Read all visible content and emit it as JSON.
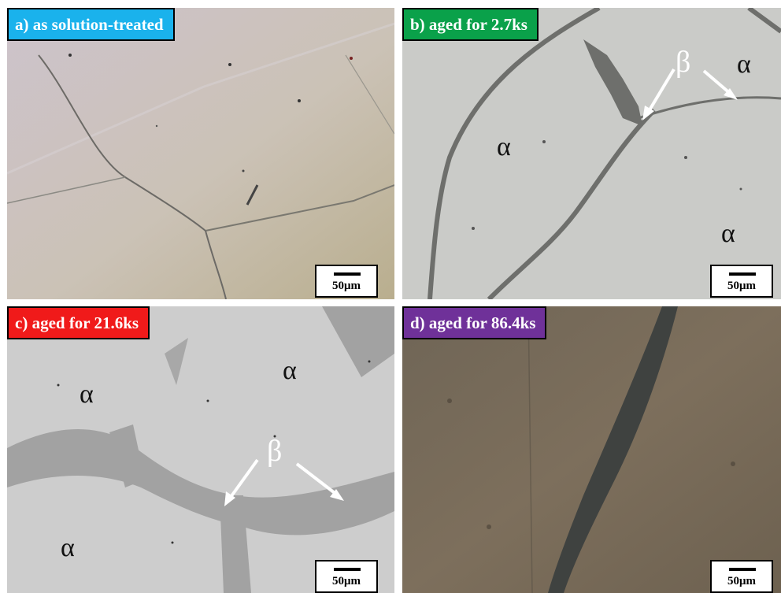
{
  "panels": {
    "a": {
      "label": "a) as solution-treated",
      "label_color": "#1ab2ec",
      "scale": "50μm"
    },
    "b": {
      "label": "b) aged for 2.7ks",
      "label_color": "#0aa14a",
      "scale": "50μm",
      "phases": {
        "alpha1": "α",
        "alpha2": "α",
        "alpha3": "α",
        "beta": "β"
      }
    },
    "c": {
      "label": "c) aged for  21.6ks",
      "label_color": "#f01a1a",
      "scale": "50μm",
      "phases": {
        "alpha1": "α",
        "alpha2": "α",
        "alpha3": "α",
        "beta": "β"
      }
    },
    "d": {
      "label": "d) aged for 86.4ks",
      "label_color": "#6f3199",
      "scale": "50μm"
    }
  }
}
